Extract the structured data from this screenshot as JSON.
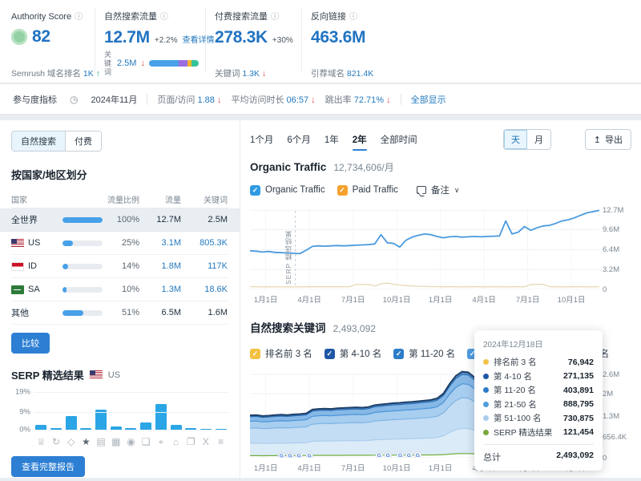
{
  "topbar": {
    "authority": {
      "label": "Authority Score",
      "score": "82",
      "footer_label": "Semrush 域名排名",
      "footer_value": "1K",
      "footer_arrow": "↑"
    },
    "organic_traffic": {
      "label": "自然搜索流量",
      "value": "12.7M",
      "change": "+2.2%",
      "details_link": "查看详情",
      "kw_label": "关键词",
      "kw_value": "2.5M",
      "kw_arrow": "↓",
      "kw_bar": [
        {
          "color": "#47a0e8",
          "width": 60
        },
        {
          "color": "#9a6ee0",
          "width": 18
        },
        {
          "color": "#f2b32c",
          "width": 7
        },
        {
          "color": "#35c49a",
          "width": 15
        }
      ]
    },
    "paid_traffic": {
      "label": "付费搜索流量",
      "value": "278.3K",
      "change": "+30%",
      "footer_label": "关键词",
      "footer_value": "1.3K",
      "footer_arrow": "↓"
    },
    "backlinks": {
      "label": "反向链接",
      "value": "463.6M",
      "footer_label": "引荐域名",
      "footer_value": "821.4K"
    }
  },
  "engagement": {
    "label": "参与度指标",
    "date": "2024年11月",
    "metrics": [
      {
        "label": "页面/访问",
        "value": "1.88",
        "arrow": "↓"
      },
      {
        "label": "平均访问时长",
        "value": "06:57",
        "arrow": "↓"
      },
      {
        "label": "跳出率",
        "value": "72.71%",
        "arrow": "↓"
      }
    ],
    "show_all": "全部显示"
  },
  "left_panel": {
    "tabs": [
      "自然搜索",
      "付费"
    ],
    "title": "按国家/地区划分",
    "table": {
      "headers": [
        "国家",
        "流量比例",
        "流量",
        "关键词"
      ],
      "rows": [
        {
          "country": "全世界",
          "bar": 100,
          "share": "100%",
          "traffic": "12.7M",
          "keywords": "2.5M"
        },
        {
          "country": "US",
          "bar": 25,
          "share": "25%",
          "traffic": "3.1M",
          "keywords": "805.3K"
        },
        {
          "country": "ID",
          "bar": 14,
          "share": "14%",
          "traffic": "1.8M",
          "keywords": "117K"
        },
        {
          "country": "SA",
          "bar": 10,
          "share": "10%",
          "traffic": "1.3M",
          "keywords": "18.6K"
        },
        {
          "country": "其他",
          "bar": 51,
          "share": "51%",
          "traffic": "6.5M",
          "keywords": "1.6M"
        }
      ]
    },
    "compare_button": "比较",
    "serp_title": "SERP 精选结果",
    "serp_country": "US",
    "report_button": "查看完整报告"
  },
  "right_panel": {
    "ranges": [
      "1个月",
      "6个月",
      "1年",
      "2年",
      "全部时间"
    ],
    "active_range": "2年",
    "granularity": [
      "天",
      "月"
    ],
    "export_label": "导出",
    "export_icon": "↥",
    "notes_label": "备注",
    "traffic_legend": [
      {
        "label": "Organic Traffic",
        "color": "#2f9be3"
      },
      {
        "label": "Paid Traffic",
        "color": "#f5a12d"
      }
    ],
    "keyword_legend": [
      {
        "label": "排名前 3 名",
        "color": "#f3c03f"
      },
      {
        "label": "第 4-10 名",
        "color": "#1d57a5"
      },
      {
        "label": "第 11-20 名",
        "color": "#2b7cc9"
      },
      {
        "label": "第 21-50 名",
        "color": "#4f9ce0"
      },
      {
        "label": "第 51-100 名",
        "color": "#b7d7f1"
      }
    ]
  },
  "tooltip": {
    "date": "2024年12月18日",
    "rows": [
      {
        "color": "#f0c24a",
        "label": "排名前 3 名",
        "value": "76,942"
      },
      {
        "color": "#1d57a5",
        "label": "第 4-10 名",
        "value": "271,135"
      },
      {
        "color": "#2b7cc9",
        "label": "第 11-20 名",
        "value": "403,891"
      },
      {
        "color": "#4f9ce0",
        "label": "第 21-50 名",
        "value": "888,795"
      },
      {
        "color": "#a9cdec",
        "label": "第 51-100 名",
        "value": "730,875"
      },
      {
        "color": "#7aa93c",
        "label": "SERP 精选结果",
        "value": "121,454"
      }
    ],
    "total_label": "总计",
    "total_value": "2,493,092"
  },
  "chart_data": [
    {
      "id": "traffic-trend",
      "type": "line",
      "title": "Organic Traffic",
      "subtitle": "12,734,606/月",
      "ymax": 13.4,
      "yticks": [
        {
          "v": 12.7,
          "label": "12.7M"
        },
        {
          "v": 9.6,
          "label": "9.6M"
        },
        {
          "v": 6.4,
          "label": "6.4M"
        },
        {
          "v": 3.2,
          "label": "3.2M"
        },
        {
          "v": 0,
          "label": "0"
        }
      ],
      "xticks": [
        {
          "f": 0.045,
          "label": "1月1日"
        },
        {
          "f": 0.17,
          "label": "4月1日"
        },
        {
          "f": 0.295,
          "label": "7月1日"
        },
        {
          "f": 0.42,
          "label": "10月1日"
        },
        {
          "f": 0.545,
          "label": "1月1日"
        },
        {
          "f": 0.67,
          "label": "4月1日"
        },
        {
          "f": 0.795,
          "label": "7月1日"
        },
        {
          "f": 0.92,
          "label": "10月1日"
        }
      ],
      "annotation": {
        "f": 0.13,
        "label": "SERP 精选结果"
      },
      "series": [
        {
          "name": "Paid Traffic",
          "color": "#e9d8b6",
          "width": 1.3,
          "values": [
            0.45,
            0.42,
            0.4,
            0.42,
            0.4,
            0.41,
            0.42,
            0.4,
            0.41,
            0.42,
            0.44,
            0.42,
            0.43,
            0.44,
            0.42,
            0.43,
            0.44,
            0.8,
            0.78,
            0.8,
            0.55,
            0.9,
            1.0,
            0.85,
            0.7,
            0.6,
            0.55,
            0.5,
            0.48,
            0.45,
            0.44,
            0.43,
            0.42,
            0.42,
            0.41,
            0.42,
            0.43,
            0.42,
            0.41,
            0.42,
            0.42,
            0.41,
            0.42,
            0.43,
            0.42,
            0.8,
            0.82,
            0.8,
            0.45,
            0.42,
            0.41,
            0.42,
            0.43,
            0.42,
            0.41,
            0.42,
            0.44
          ]
        },
        {
          "name": "Organic Traffic",
          "color": "#4a9ade",
          "width": 1.8,
          "values": [
            6.2,
            6.15,
            6.0,
            6.1,
            5.95,
            5.9,
            5.85,
            5.8,
            5.75,
            6.3,
            6.9,
            7.0,
            6.95,
            7.0,
            7.05,
            7.0,
            7.05,
            7.1,
            7.15,
            7.2,
            7.3,
            8.8,
            7.5,
            7.4,
            6.8,
            7.9,
            8.4,
            8.7,
            8.9,
            8.8,
            8.5,
            8.3,
            8.45,
            8.5,
            8.4,
            8.45,
            8.5,
            8.45,
            8.5,
            8.55,
            8.6,
            11.0,
            8.9,
            9.2,
            10.1,
            9.5,
            9.9,
            10.2,
            10.3,
            10.6,
            11.0,
            11.2,
            11.5,
            11.9,
            12.3,
            12.5,
            12.7
          ]
        }
      ]
    },
    {
      "id": "keywords-stack",
      "type": "area",
      "title": "自然搜索关键词",
      "total_label": "2,493,092",
      "ymax": 2.75,
      "yticks": [
        {
          "v": 2.6,
          "label": "2.6M"
        },
        {
          "v": 2.0,
          "label": "2M"
        },
        {
          "v": 1.3,
          "label": "1.3M"
        },
        {
          "v": 0.6564,
          "label": "656.4K"
        },
        {
          "v": 0,
          "label": "0"
        }
      ],
      "xticks": [
        {
          "f": 0.045,
          "label": "1月1日"
        },
        {
          "f": 0.17,
          "label": "4月1日"
        },
        {
          "f": 0.295,
          "label": "7月1日"
        },
        {
          "f": 0.42,
          "label": "10月1日"
        },
        {
          "f": 0.545,
          "label": "1月1日"
        },
        {
          "f": 0.67,
          "label": "4月1日"
        },
        {
          "f": 0.795,
          "label": "7月1日"
        },
        {
          "f": 0.92,
          "label": "10月1日"
        }
      ],
      "totals": [
        1.32,
        1.33,
        1.3,
        1.31,
        1.33,
        1.34,
        1.33,
        1.35,
        1.36,
        1.38,
        1.5,
        1.52,
        1.53,
        1.52,
        1.54,
        1.55,
        1.56,
        1.57,
        1.56,
        1.58,
        1.64,
        1.66,
        1.68,
        1.7,
        1.71,
        1.73,
        1.74,
        1.76,
        1.78,
        1.8,
        1.85,
        2.0,
        2.3,
        2.55,
        2.68,
        2.66,
        2.5,
        2.47,
        2.55,
        2.58,
        2.52,
        2.48,
        2.5,
        2.46,
        2.44,
        2.42,
        2.44,
        2.4,
        2.38,
        2.36,
        2.38,
        2.36,
        2.38,
        2.4,
        2.42,
        2.46,
        2.49
      ],
      "series": [
        {
          "name": "SERP 精选结果",
          "share": 0.049,
          "stroke": "#6fae3f",
          "fill": "none"
        },
        {
          "name": "第 51-100 名",
          "share": 0.293,
          "stroke": "#aacdee",
          "fill": "#dcebf8"
        },
        {
          "name": "第 21-50 名",
          "share": 0.357,
          "stroke": "#7fb5e5",
          "fill": "#c3ddf4"
        },
        {
          "name": "第 11-20 名",
          "share": 0.162,
          "stroke": "#4a94d8",
          "fill": "#a7cdef"
        },
        {
          "name": "第 4-10 名",
          "share": 0.109,
          "stroke": "#2a6cb4",
          "fill": "#86b8e6"
        },
        {
          "name": "排名前 3 名",
          "share": 0.031,
          "stroke": "#1e3f66",
          "fill": "#5d97cd"
        }
      ],
      "google_markers": [
        0.09,
        0.115,
        0.14,
        0.17,
        0.37,
        0.395,
        0.43,
        0.455,
        0.48,
        0.655,
        0.68,
        0.73,
        0.8,
        0.825,
        0.9,
        0.965
      ],
      "scrubber_f": 0.975
    },
    {
      "id": "serp-features",
      "type": "bar",
      "ymax": 19,
      "yticks": [
        {
          "v": 19,
          "label": "19%"
        },
        {
          "v": 9,
          "label": "9%"
        },
        {
          "v": 0,
          "label": "0%"
        }
      ],
      "bars": [
        {
          "icon": "crown-icon",
          "glyph": "♕",
          "value": 2.5
        },
        {
          "icon": "refresh-icon",
          "glyph": "↻",
          "value": 0.8
        },
        {
          "icon": "diamond-icon",
          "glyph": "◇",
          "value": 7
        },
        {
          "icon": "star-icon",
          "glyph": "★",
          "value": 0.8,
          "dark": true
        },
        {
          "icon": "image-icon",
          "glyph": "▤",
          "value": 10
        },
        {
          "icon": "image-frame-icon",
          "glyph": "▦",
          "value": 1.5
        },
        {
          "icon": "video-icon",
          "glyph": "◉",
          "value": 0.8
        },
        {
          "icon": "comment-icon",
          "glyph": "❑",
          "value": 3.5
        },
        {
          "icon": "location-icon",
          "glyph": "⌖",
          "value": 13
        },
        {
          "icon": "education-icon",
          "glyph": "⌂",
          "value": 2.5
        },
        {
          "icon": "copy-icon",
          "glyph": "❐",
          "value": 1
        },
        {
          "icon": "x-twitter-icon",
          "glyph": "X",
          "value": 0.15
        },
        {
          "icon": "list-icon",
          "glyph": "≡",
          "value": 0.5
        }
      ]
    }
  ]
}
